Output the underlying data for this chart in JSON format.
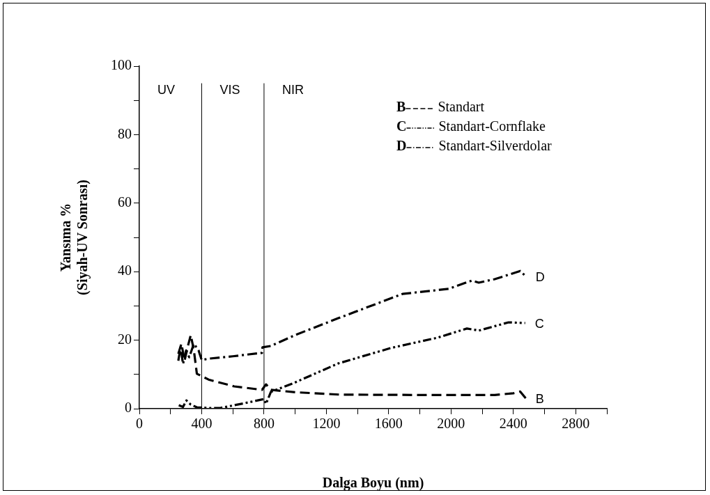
{
  "chart_data": {
    "type": "line",
    "xlabel": "Dalga Boyu (nm)",
    "ylabel": "Yansıma %\n(Siyah-UV Sonrası)",
    "xlim": [
      0,
      3000
    ],
    "xticks": [
      0,
      {
        "value": 200,
        "label": null
      },
      400,
      {
        "value": 600,
        "label": null
      },
      800,
      {
        "value": 1000,
        "label": null
      },
      1200,
      {
        "value": 1400,
        "label": null
      },
      1600,
      {
        "value": 1800,
        "label": null
      },
      2000,
      {
        "value": 2200,
        "label": null
      },
      2400,
      {
        "value": 2600,
        "label": null
      },
      2800,
      {
        "value": 3000,
        "label": null
      }
    ],
    "ylim": [
      0,
      100
    ],
    "yticks": [
      0,
      {
        "value": 10,
        "label": null
      },
      20,
      {
        "value": 30,
        "label": null
      },
      40,
      {
        "value": 50,
        "label": null
      },
      60,
      {
        "value": 70,
        "label": null
      },
      80,
      {
        "value": 90,
        "label": null
      },
      100
    ],
    "legend": "top right",
    "grid": false,
    "marker": "none",
    "series": [
      {
        "name": "Standart",
        "color": "#000000",
        "line_style": "dashed",
        "x": [
          250,
          270,
          290,
          310,
          330,
          350,
          369,
          400,
          444,
          500,
          609,
          700,
          787,
          813,
          844,
          1000,
          1289,
          1791,
          2280,
          2400,
          2444,
          2480
        ],
        "values": [
          16,
          19,
          14,
          18,
          21.5,
          17,
          10.2,
          9.5,
          8.5,
          7.8,
          6.5,
          6,
          5.5,
          7.1,
          5.5,
          4.8,
          4.1,
          4,
          4,
          4.5,
          5,
          3
        ]
      },
      {
        "name": "Standart-Cornflake",
        "color": "#000000",
        "line_style": "dashdotdot",
        "x": [
          253,
          280,
          302,
          330,
          369,
          450,
          520,
          653,
          800,
          813,
          844,
          991,
          1276,
          1613,
          1911,
          2102,
          2178,
          2369,
          2476
        ],
        "values": [
          1,
          0.5,
          2.4,
          1.2,
          0.4,
          0.2,
          0.2,
          1.4,
          2.8,
          1.4,
          4.9,
          7.5,
          13.2,
          17.7,
          20.7,
          23.4,
          22.8,
          25.2,
          25
        ]
      },
      {
        "name": "Standart-Silverdolar",
        "color": "#000000",
        "line_style": "dashdot",
        "x": [
          250,
          265,
          280,
          300,
          320,
          350,
          380,
          400,
          444,
          600,
          787,
          790,
          844,
          1000,
          1276,
          1689,
          1987,
          2133,
          2178,
          2280,
          2444,
          2480
        ],
        "values": [
          14,
          18,
          13,
          17,
          15,
          19,
          17,
          14.2,
          14.6,
          15.3,
          16.3,
          17.9,
          18.3,
          21.5,
          26.4,
          33.5,
          35,
          37.4,
          36.8,
          37.8,
          40.2,
          38.6
        ]
      }
    ],
    "ref_lines": [
      {
        "axis": "x",
        "value": 400,
        "color": "#000000"
      },
      {
        "axis": "x",
        "value": 800,
        "color": "#000000"
      }
    ],
    "annotations": [
      "UV",
      "VIS",
      "NIR",
      "B",
      "C",
      "D"
    ]
  }
}
